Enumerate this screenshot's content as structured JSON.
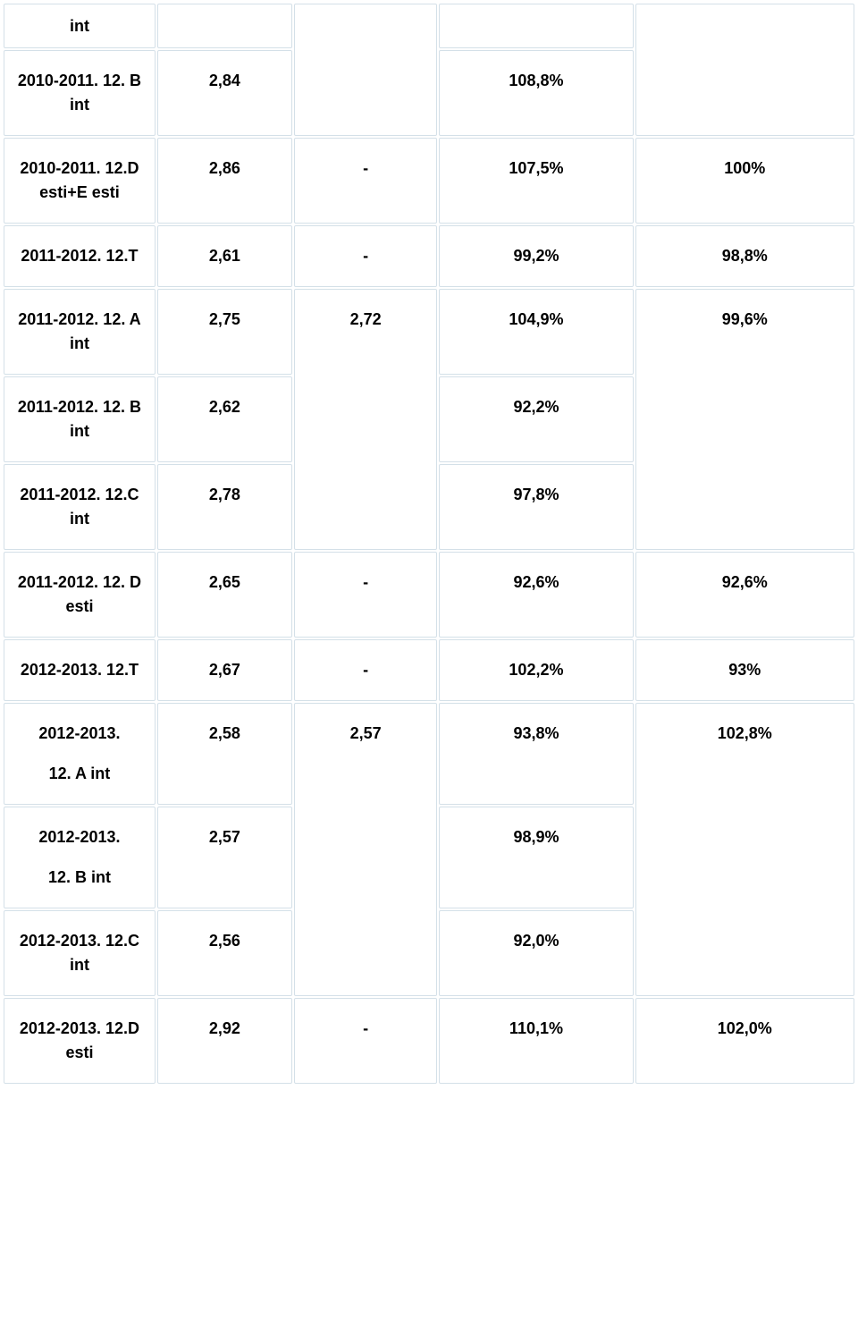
{
  "table": {
    "type": "table",
    "border_color": "#d4e0e8",
    "background_color": "#ffffff",
    "text_color": "#000000",
    "font_weight": "700",
    "font_size_pt": 14,
    "column_widths_pct": [
      18,
      16,
      17,
      23,
      26
    ],
    "rows": [
      {
        "label": "int",
        "c1": "",
        "c2": null,
        "c3": "",
        "c4": null
      },
      {
        "label": "2010-2011. 12. B int",
        "c1": "2,84",
        "c2": null,
        "c3": "108,8%",
        "c4": null
      },
      {
        "label": "2010-2011. 12.D esti+E esti",
        "c1": "2,86",
        "c2": "-",
        "c3": "107,5%",
        "c4": "100%"
      },
      {
        "label": "2011-2012. 12.T",
        "c1": "2,61",
        "c2": "-",
        "c3": "99,2%",
        "c4": "98,8%"
      },
      {
        "label": "2011-2012. 12. A int",
        "c1": "2,75",
        "c2": "2,72",
        "c3": "104,9%",
        "c4": "99,6%"
      },
      {
        "label": "2011-2012. 12. B int",
        "c1": "2,62",
        "c2": null,
        "c3": "92,2%",
        "c4": null
      },
      {
        "label": "2011-2012. 12.C int",
        "c1": "2,78",
        "c2": null,
        "c3": "97,8%",
        "c4": null
      },
      {
        "label": "2011-2012. 12. D esti",
        "c1": "2,65",
        "c2": "-",
        "c3": "92,6%",
        "c4": "92,6%"
      },
      {
        "label": "2012-2013. 12.T",
        "c1": "2,67",
        "c2": "-",
        "c3": "102,2%",
        "c4": "93%"
      },
      {
        "label_l1": "2012-2013.",
        "label_l2": "12. A int",
        "c1": "2,58",
        "c2": "2,57",
        "c3": "93,8%",
        "c4": "102,8%"
      },
      {
        "label_l1": "2012-2013.",
        "label_l2": "12. B int",
        "c1": "2,57",
        "c2": null,
        "c3": "98,9%",
        "c4": null
      },
      {
        "label": "2012-2013. 12.C int",
        "c1": "2,56",
        "c2": null,
        "c3": "92,0%",
        "c4": null
      },
      {
        "label": "2012-2013. 12.D esti",
        "c1": "2,92",
        "c2": "-",
        "c3": "110,1%",
        "c4": "102,0%"
      }
    ]
  }
}
